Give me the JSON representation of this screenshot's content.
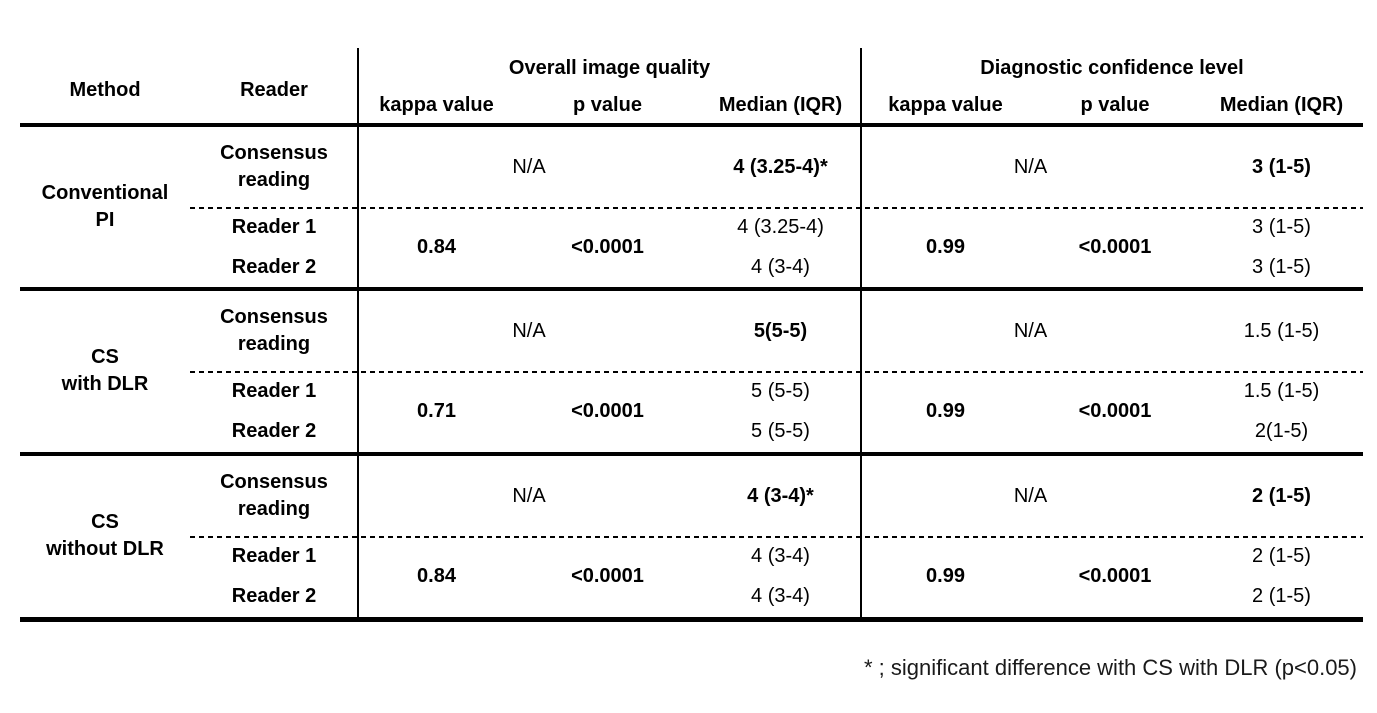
{
  "table": {
    "headers": {
      "method": "Method",
      "reader": "Reader",
      "sections": [
        {
          "title": "Overall image quality",
          "cols": [
            "kappa value",
            "p value",
            "Median (IQR)"
          ]
        },
        {
          "title": "Diagnostic confidence level",
          "cols": [
            "kappa value",
            "p value",
            "Median (IQR)"
          ]
        }
      ]
    },
    "groups": [
      {
        "method_line1": "Conventional",
        "method_line2": "PI",
        "consensus_line1": "Consensus",
        "consensus_line2": "reading",
        "reader1": "Reader 1",
        "reader2": "Reader 2",
        "overall": {
          "na": "N/A",
          "consensus_median": "4 (3.25-4)*",
          "kappa": "0.84",
          "p": "<0.0001",
          "r1_median": "4 (3.25-4)",
          "r2_median": "4 (3-4)"
        },
        "diagnostic": {
          "na": "N/A",
          "consensus_median": "3 (1-5)",
          "kappa": "0.99",
          "p": "<0.0001",
          "r1_median": "3 (1-5)",
          "r2_median": "3 (1-5)"
        }
      },
      {
        "method_line1": "CS",
        "method_line2": "with DLR",
        "consensus_line1": "Consensus",
        "consensus_line2": "reading",
        "reader1": "Reader 1",
        "reader2": "Reader 2",
        "overall": {
          "na": "N/A",
          "consensus_median": "5(5-5)",
          "kappa": "0.71",
          "p": "<0.0001",
          "r1_median": "5 (5-5)",
          "r2_median": "5 (5-5)"
        },
        "diagnostic": {
          "na": "N/A",
          "consensus_median": "1.5 (1-5)",
          "kappa": "0.99",
          "p": "<0.0001",
          "r1_median": "1.5 (1-5)",
          "r2_median": "2(1-5)"
        }
      },
      {
        "method_line1": "CS",
        "method_line2": "without DLR",
        "consensus_line1": "Consensus",
        "consensus_line2": "reading",
        "reader1": "Reader 1",
        "reader2": "Reader 2",
        "overall": {
          "na": "N/A",
          "consensus_median": "4 (3-4)*",
          "kappa": "0.84",
          "p": "<0.0001",
          "r1_median": "4 (3-4)",
          "r2_median": "4 (3-4)"
        },
        "diagnostic": {
          "na": "N/A",
          "consensus_median": "2 (1-5)",
          "kappa": "0.99",
          "p": "<0.0001",
          "r1_median": "2 (1-5)",
          "r2_median": "2 (1-5)"
        }
      }
    ],
    "footnote": "* ; significant difference with CS with DLR (p<0.05)"
  }
}
